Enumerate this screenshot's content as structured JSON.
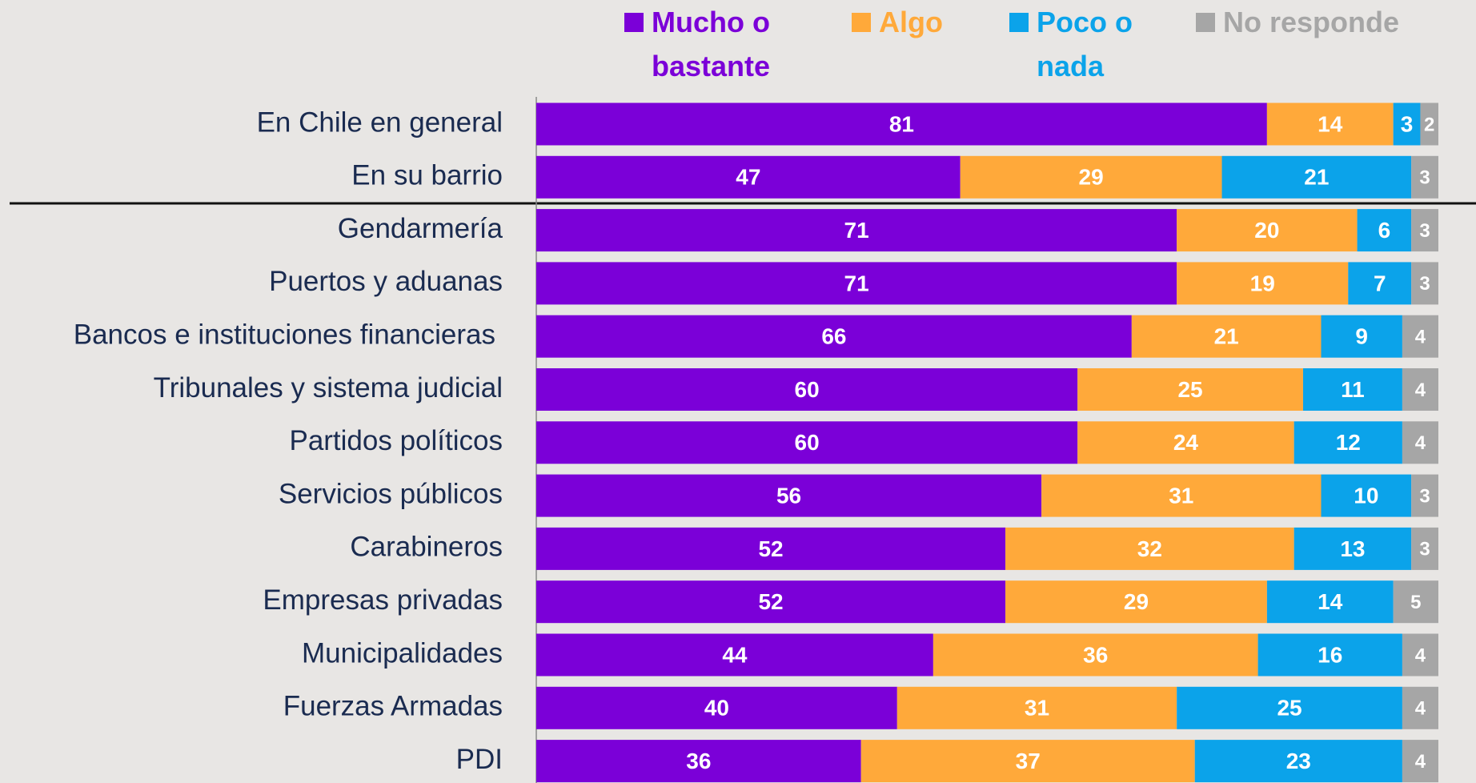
{
  "chart_data": {
    "type": "stacked_barh",
    "categories": [
      "En Chile en general",
      "En su barrio",
      "Gendarmería",
      "Puertos y aduanas",
      "Bancos e instituciones financieras",
      "Tribunales y sistema judicial",
      "Partidos políticos",
      "Servicios públicos",
      "Carabineros",
      "Empresas privadas",
      "Municipalidades",
      "Fuerzas Armadas",
      "PDI"
    ],
    "series": [
      {
        "name": "Mucho o bastante",
        "color": "#7b00d8",
        "values": [
          81,
          47,
          71,
          71,
          66,
          60,
          60,
          56,
          52,
          52,
          44,
          40,
          36
        ]
      },
      {
        "name": "Algo",
        "color": "#ffa93a",
        "values": [
          14,
          29,
          20,
          19,
          21,
          25,
          24,
          31,
          32,
          29,
          36,
          31,
          37
        ]
      },
      {
        "name": "Poco o nada",
        "color": "#0ba3ea",
        "values": [
          3,
          21,
          6,
          7,
          9,
          11,
          12,
          10,
          13,
          14,
          16,
          25,
          23
        ]
      },
      {
        "name": "No responde",
        "color": "#a6a6a6",
        "values": [
          2,
          3,
          3,
          3,
          4,
          4,
          4,
          3,
          3,
          5,
          4,
          4,
          4
        ]
      }
    ],
    "xlim": [
      0,
      100
    ]
  }
}
